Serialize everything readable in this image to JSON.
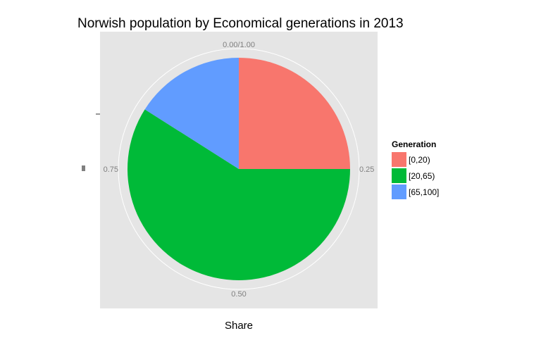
{
  "chart_data": {
    "type": "pie",
    "title": "Norwish population by Economical generations in 2013",
    "xlabel": "Share",
    "ylabel": "",
    "theta_ticks": [
      {
        "value": 0,
        "label": "0.00/1.00"
      },
      {
        "value": 0.25,
        "label": "0.25"
      },
      {
        "value": 0.5,
        "label": "0.50"
      },
      {
        "value": 0.75,
        "label": "0.75"
      }
    ],
    "legend": {
      "title": "Generation",
      "placement": "right"
    },
    "slices": [
      {
        "label": "[0,20)",
        "value": 0.25,
        "color": "#F8766D"
      },
      {
        "label": "[20,65)",
        "value": 0.59,
        "color": "#00BA38"
      },
      {
        "label": "[65,100]",
        "value": 0.16,
        "color": "#619CFF"
      }
    ],
    "panel_color": "#E5E5E5",
    "grid": true
  }
}
